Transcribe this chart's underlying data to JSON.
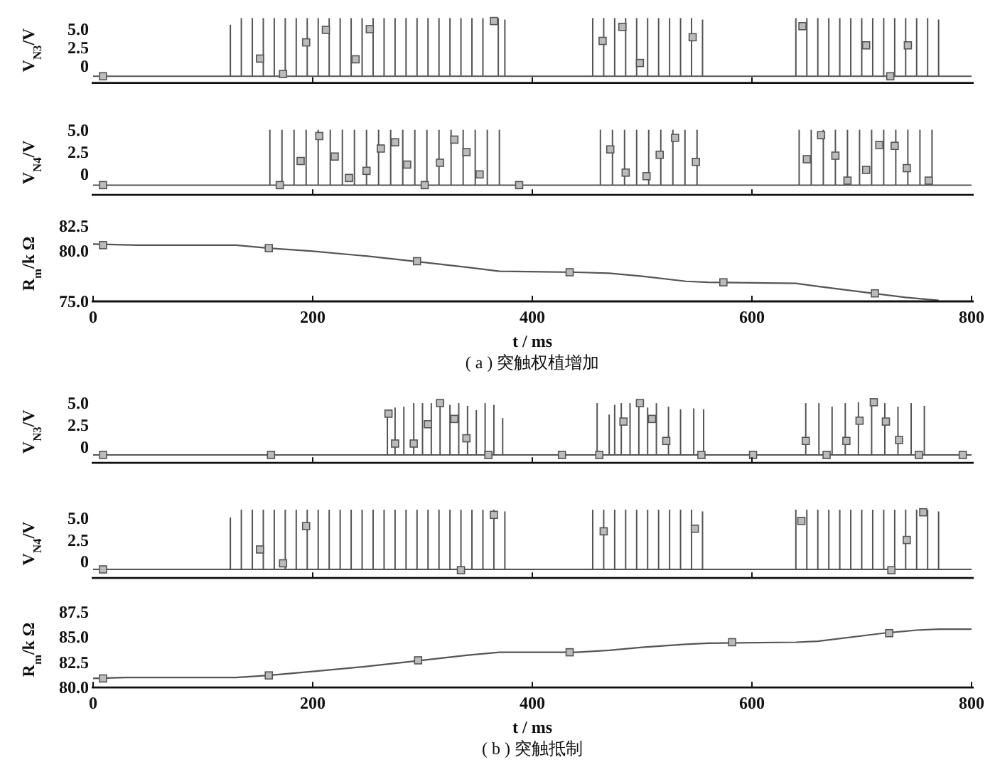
{
  "chart_data": [
    {
      "type": "bar",
      "ylabel": "V$_{N3}$/V",
      "xlim": [
        0,
        800
      ],
      "ylim": [
        -2.3,
        6.6
      ],
      "xticks": [
        {
          "value": 200,
          "label": null
        },
        {
          "value": 400,
          "label": null
        },
        {
          "value": 600,
          "label": null
        }
      ],
      "yticks": [
        0,
        2.5,
        {
          "value": 5,
          "label": "5.0"
        }
      ],
      "tick_labels": "y",
      "ref_lines": [
        {
          "axis": "y",
          "value": -1.4,
          "color": "#555555"
        }
      ],
      "series": [
        {
          "color": "#555555",
          "x": [
            125,
            135,
            145,
            155,
            165,
            175,
            185,
            195,
            205,
            215,
            225,
            235,
            245,
            255,
            265,
            275,
            285,
            295,
            305,
            315,
            325,
            335,
            345,
            355,
            369,
            375,
            455,
            465,
            475,
            485,
            495,
            505,
            515,
            525,
            535,
            545,
            555,
            640,
            650,
            660,
            670,
            680,
            690,
            700,
            710,
            720,
            730,
            740,
            750,
            760,
            770
          ],
          "values": [
            7.0,
            7.9,
            7.9,
            7.9,
            7.9,
            7.9,
            7.9,
            7.9,
            7.9,
            7.9,
            7.9,
            7.9,
            7.9,
            7.9,
            7.9,
            7.9,
            7.9,
            7.9,
            7.9,
            7.9,
            7.9,
            7.9,
            7.9,
            7.9,
            7.9,
            7.7,
            7.9,
            7.9,
            7.9,
            7.9,
            7.9,
            7.9,
            7.9,
            7.9,
            7.9,
            7.9,
            7.7,
            7.9,
            7.9,
            7.9,
            7.9,
            7.9,
            7.9,
            7.9,
            7.9,
            7.9,
            7.9,
            7.9,
            7.9,
            7.9,
            7.7
          ],
          "base": [
            -1.4,
            -1.4,
            -1.4,
            -1.4,
            -1.4,
            -1.4,
            -1.4,
            -1.4,
            -1.4,
            -1.4,
            -1.4,
            -1.4,
            -1.4,
            -1.4,
            -1.4,
            -1.4,
            -1.4,
            -1.4,
            -1.4,
            -1.4,
            -1.4,
            -1.4,
            -1.4,
            -1.4,
            -1.4,
            -1.4,
            -1.4,
            -1.4,
            -1.4,
            -1.4,
            -1.4,
            -1.4,
            -1.4,
            -1.4,
            -1.4,
            -1.4,
            -1.4,
            -1.4,
            -1.4,
            -1.4,
            -1.4,
            -1.4,
            -1.4,
            -1.4,
            -1.4,
            -1.4,
            -1.4,
            -1.4,
            -1.4,
            -1.4,
            -1.4
          ]
        },
        {
          "type": "scatter",
          "marker": "square",
          "color": "#bbbbbb",
          "x": [
            9,
            152,
            173,
            194,
            212,
            239,
            252,
            365,
            464,
            482,
            498,
            546,
            646,
            704,
            726,
            742
          ],
          "values": [
            -1.4,
            1.0,
            -1.1,
            3.2,
            4.9,
            0.9,
            5.0,
            6.1,
            3.4,
            5.3,
            0.4,
            3.9,
            5.4,
            2.8,
            -1.4,
            2.8
          ]
        }
      ]
    },
    {
      "type": "bar",
      "ylabel": "V$_{N4}$/V",
      "xlim": [
        0,
        800
      ],
      "ylim": [
        -2.3,
        5.0
      ],
      "xticks": [
        {
          "value": 200,
          "label": null
        },
        {
          "value": 400,
          "label": null
        },
        {
          "value": 600,
          "label": null
        }
      ],
      "yticks": [
        0,
        2.5,
        {
          "value": 5,
          "label": "5.0"
        }
      ],
      "tick_labels": "y",
      "ref_lines": [
        {
          "axis": "y",
          "value": -1.2,
          "color": "#555555"
        }
      ],
      "series": [
        {
          "color": "#555555",
          "x": [
            161,
            172,
            183,
            194,
            205,
            216,
            227,
            238,
            249,
            260,
            271,
            282,
            293,
            304,
            315,
            326,
            337,
            348,
            359,
            370,
            462,
            473,
            484,
            495,
            506,
            517,
            528,
            539,
            550,
            643,
            654,
            665,
            676,
            687,
            698,
            709,
            720,
            731,
            742,
            753,
            764
          ],
          "values": [
            6.2,
            6.2,
            6.2,
            6.2,
            6.2,
            6.2,
            6.2,
            6.2,
            6.2,
            6.2,
            6.2,
            6.2,
            6.2,
            6.2,
            6.2,
            6.2,
            6.2,
            6.2,
            6.2,
            6.2,
            6.2,
            6.2,
            6.2,
            6.2,
            6.2,
            6.2,
            6.2,
            6.2,
            6.2,
            6.2,
            6.2,
            6.2,
            6.2,
            6.2,
            6.2,
            6.2,
            6.2,
            6.2,
            6.2,
            6.2,
            6.2
          ],
          "base": [
            -1.2,
            -1.2,
            -1.2,
            -1.2,
            -1.2,
            -1.2,
            -1.2,
            -1.2,
            -1.2,
            -1.2,
            -1.2,
            -1.2,
            -1.2,
            -1.2,
            -1.2,
            -1.2,
            -1.2,
            -1.2,
            -1.2,
            -1.2,
            -1.2,
            -1.2,
            -1.2,
            -1.2,
            -1.2,
            -1.2,
            -1.2,
            -1.2,
            -1.2,
            -1.2,
            -1.2,
            -1.2,
            -1.2,
            -1.2,
            -1.2,
            -1.2,
            -1.2,
            -1.2,
            -1.2,
            -1.2,
            -1.2
          ]
        },
        {
          "type": "scatter",
          "marker": "square",
          "color": "#bbbbbb",
          "x": [
            9,
            170,
            189,
            206,
            220,
            233,
            249,
            262,
            275,
            286,
            302,
            316,
            329,
            340,
            352,
            388,
            471,
            485,
            504,
            516,
            530,
            549,
            650,
            663,
            676,
            687,
            704,
            716,
            730,
            741,
            761
          ],
          "values": [
            -1.2,
            -1.2,
            1.5,
            4.3,
            2.0,
            -0.4,
            0.4,
            2.9,
            3.6,
            1.1,
            -1.2,
            1.3,
            3.9,
            2.5,
            0,
            -1.2,
            2.8,
            0.2,
            -0.2,
            2.2,
            4.1,
            1.4,
            1.7,
            4.4,
            2.1,
            -0.7,
            0.5,
            3.3,
            3.2,
            0.7,
            -0.7
          ]
        }
      ]
    },
    {
      "type": "line",
      "ylabel": "R$_{m}$/k Ω",
      "xlabel": "t / ms",
      "annotations": [
        "( a ) 突触权植增加"
      ],
      "xlim": [
        0,
        800
      ],
      "ylim": [
        75,
        82.5
      ],
      "xticks": [
        0,
        200,
        400,
        600,
        800
      ],
      "yticks": [
        {
          "value": 75,
          "label": "75.0"
        },
        {
          "value": 80,
          "label": "80.0"
        },
        82.5
      ],
      "series": [
        {
          "color": "#555555",
          "x": [
            0,
            40,
            130,
            160,
            200,
            250,
            300,
            340,
            370,
            440,
            470,
            500,
            540,
            560,
            640,
            660,
            710,
            740,
            770
          ],
          "values": [
            80.7,
            80.6,
            80.6,
            80.3,
            80.0,
            79.5,
            78.9,
            78.4,
            78.0,
            77.9,
            77.8,
            77.5,
            77.0,
            76.9,
            76.8,
            76.5,
            75.8,
            75.4,
            75.1
          ]
        },
        {
          "type": "scatter",
          "marker": "square",
          "color": "#bbbbbb",
          "x": [
            9,
            160,
            295,
            434,
            574,
            712
          ],
          "values": [
            80.6,
            80.3,
            79.0,
            77.9,
            76.9,
            75.8
          ]
        }
      ]
    },
    {
      "type": "bar",
      "ylabel": "V$_{N3}$/V",
      "xlim": [
        0,
        800
      ],
      "ylim": [
        -1.8,
        5.3
      ],
      "xticks": [
        {
          "value": 200,
          "label": null
        },
        {
          "value": 400,
          "label": null
        },
        {
          "value": 600,
          "label": null
        }
      ],
      "yticks": [
        0,
        2.5,
        {
          "value": 5,
          "label": "5.0"
        }
      ],
      "tick_labels": "y",
      "ref_lines": [
        {
          "axis": "y",
          "value": -0.9,
          "color": "#555555"
        }
      ],
      "series": [
        {
          "color": "#555555",
          "x": [
            268,
            275,
            283,
            292,
            300,
            308,
            316,
            325,
            333,
            341,
            349,
            357,
            365,
            373,
            459,
            470,
            475,
            481,
            489,
            497,
            505,
            513,
            524,
            535,
            547,
            556,
            649,
            661,
            673,
            685,
            697,
            709,
            721,
            733,
            745,
            757
          ],
          "values": [
            4.9,
            5.4,
            5.5,
            5.9,
            5.9,
            5.9,
            6.0,
            5.7,
            5.9,
            5.6,
            5.1,
            5.9,
            5.7,
            4.2,
            5.9,
            4.6,
            5.7,
            5.9,
            5.9,
            5.9,
            5.4,
            5.9,
            5.5,
            5.2,
            5.3,
            5.2,
            5.9,
            5.9,
            5.5,
            5.9,
            6.0,
            6.0,
            5.9,
            5.5,
            5.9,
            5.6
          ],
          "base": [
            -0.9,
            -0.9,
            -0.9,
            -0.9,
            -0.9,
            -0.9,
            -0.9,
            -0.9,
            -0.9,
            -0.9,
            -0.9,
            -0.9,
            -0.9,
            -0.9,
            -0.9,
            -0.9,
            -0.9,
            -0.9,
            -0.9,
            -0.9,
            -0.9,
            -0.9,
            -0.9,
            -0.9,
            -0.9,
            -0.9,
            -0.9,
            -0.9,
            -0.9,
            -0.9,
            -0.9,
            -0.9,
            -0.9,
            -0.9,
            -0.9,
            -0.9
          ]
        },
        {
          "type": "scatter",
          "marker": "square",
          "color": "#bbbbbb",
          "x": [
            9,
            162,
            269,
            275,
            292,
            305,
            316,
            329,
            340,
            360,
            427,
            461,
            483,
            498,
            509,
            522,
            554,
            601,
            649,
            668,
            686,
            698,
            711,
            722,
            734,
            752,
            792
          ],
          "values": [
            -0.9,
            -0.9,
            3.8,
            0.4,
            0.4,
            2.6,
            5.0,
            3.2,
            1.0,
            -0.9,
            -0.9,
            -0.9,
            2.9,
            5.0,
            3.2,
            0.7,
            -0.9,
            -0.9,
            0.7,
            -0.9,
            0.7,
            3.0,
            5.1,
            2.9,
            0.8,
            -0.9,
            -0.9
          ]
        }
      ]
    },
    {
      "type": "bar",
      "ylabel": "V$_{N4}$/V",
      "xlim": [
        0,
        800
      ],
      "ylim": [
        -1.9,
        6.1
      ],
      "xticks": [
        {
          "value": 200,
          "label": null
        },
        {
          "value": 400,
          "label": null
        },
        {
          "value": 600,
          "label": null
        }
      ],
      "yticks": [
        0,
        2.5,
        {
          "value": 5,
          "label": "5.0"
        }
      ],
      "tick_labels": "y",
      "ref_lines": [
        {
          "axis": "y",
          "value": -0.9,
          "color": "#555555"
        }
      ],
      "series": [
        {
          "color": "#555555",
          "x": [
            125,
            135,
            145,
            155,
            165,
            175,
            185,
            195,
            205,
            215,
            225,
            235,
            245,
            255,
            265,
            275,
            285,
            295,
            305,
            315,
            325,
            335,
            345,
            355,
            365,
            375,
            455,
            465,
            475,
            485,
            495,
            505,
            515,
            525,
            535,
            545,
            555,
            640,
            650,
            660,
            670,
            680,
            690,
            700,
            710,
            720,
            730,
            740,
            750,
            760,
            770
          ],
          "values": [
            6.0,
            6.9,
            6.9,
            6.9,
            6.9,
            6.9,
            6.9,
            6.9,
            6.9,
            6.9,
            6.9,
            6.9,
            6.9,
            6.9,
            6.9,
            6.9,
            6.9,
            6.9,
            6.9,
            6.9,
            6.9,
            6.9,
            6.9,
            6.9,
            6.9,
            6.7,
            6.9,
            6.9,
            6.9,
            6.9,
            6.9,
            6.9,
            6.9,
            6.9,
            6.9,
            6.9,
            6.7,
            6.9,
            6.9,
            6.9,
            6.9,
            6.9,
            6.9,
            6.9,
            6.9,
            6.9,
            6.9,
            6.9,
            6.9,
            6.9,
            6.7
          ],
          "base": [
            -0.9,
            -0.9,
            -0.9,
            -0.9,
            -0.9,
            -0.9,
            -0.9,
            -0.9,
            -0.9,
            -0.9,
            -0.9,
            -0.9,
            -0.9,
            -0.9,
            -0.9,
            -0.9,
            -0.9,
            -0.9,
            -0.9,
            -0.9,
            -0.9,
            -0.9,
            -0.9,
            -0.9,
            -0.9,
            -0.9,
            -0.9,
            -0.9,
            -0.9,
            -0.9,
            -0.9,
            -0.9,
            -0.9,
            -0.9,
            -0.9,
            -0.9,
            -0.9,
            -0.9,
            -0.9,
            -0.9,
            -0.9,
            -0.9,
            -0.9,
            -0.9,
            -0.9,
            -0.9,
            -0.9,
            -0.9,
            -0.9,
            -0.9,
            -0.9
          ]
        },
        {
          "type": "scatter",
          "marker": "square",
          "color": "#bbbbbb",
          "x": [
            9,
            152,
            173,
            194,
            335,
            365,
            465,
            548,
            645,
            727,
            741,
            756
          ],
          "values": [
            -0.9,
            1.4,
            -0.2,
            4.1,
            -1.0,
            5.4,
            3.5,
            3.8,
            4.7,
            -1.0,
            2.5,
            5.7
          ]
        }
      ]
    },
    {
      "type": "line",
      "ylabel": "R$_{m}$/k Ω",
      "xlabel": "t / ms",
      "annotations": [
        "( b ) 突触抵制"
      ],
      "xlim": [
        0,
        800
      ],
      "ylim": [
        80,
        87.5
      ],
      "xticks": [
        0,
        200,
        400,
        600,
        800
      ],
      "yticks": [
        {
          "value": 80,
          "label": "80.0"
        },
        82.5,
        {
          "value": 85,
          "label": "85.0"
        },
        87.5
      ],
      "series": [
        {
          "color": "#555555",
          "x": [
            0,
            30,
            130,
            160,
            200,
            250,
            300,
            340,
            370,
            440,
            470,
            500,
            540,
            560,
            640,
            660,
            720,
            750,
            770,
            800
          ],
          "values": [
            80.9,
            81.0,
            81.0,
            81.2,
            81.6,
            82.1,
            82.7,
            83.2,
            83.5,
            83.5,
            83.7,
            84.0,
            84.3,
            84.4,
            84.5,
            84.6,
            85.4,
            85.7,
            85.8,
            85.8
          ]
        },
        {
          "type": "scatter",
          "marker": "square",
          "color": "#bbbbbb",
          "x": [
            9,
            160,
            296,
            434,
            582,
            725
          ],
          "values": [
            80.9,
            81.2,
            82.7,
            83.5,
            84.5,
            85.4
          ]
        }
      ]
    }
  ]
}
